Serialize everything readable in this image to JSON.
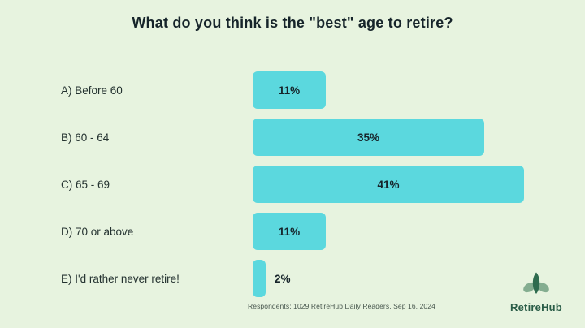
{
  "colors": {
    "background": "#e7f3df",
    "bar": "#5bd8de",
    "ink": "#16242a",
    "label": "#243230",
    "muted": "#47564d",
    "brand_green": "#2a5c47",
    "leaf_dark": "#2e6b4e",
    "leaf_light": "#84ad90"
  },
  "chart_data": {
    "type": "bar",
    "orientation": "horizontal",
    "title": "What do you think is the \"best\" age to retire?",
    "categories": [
      "A) Before 60",
      "B) 60 - 64",
      "C) 65 - 69",
      "D) 70 or above",
      "E) I'd rather never retire!"
    ],
    "values": [
      11,
      35,
      41,
      11,
      2
    ],
    "value_labels": [
      "11%",
      "35%",
      "41%",
      "11%",
      "2%"
    ],
    "xlim": [
      0,
      41
    ],
    "grid": false,
    "legend": "none",
    "value_label_position": "inside-center, outside-right when bar too small"
  },
  "footer": {
    "note": "Respondents: 1029 RetireHub Daily Readers, Sep 16, 2024"
  },
  "brand": {
    "name": "RetireHub",
    "icon": "leaf-logo-icon"
  }
}
